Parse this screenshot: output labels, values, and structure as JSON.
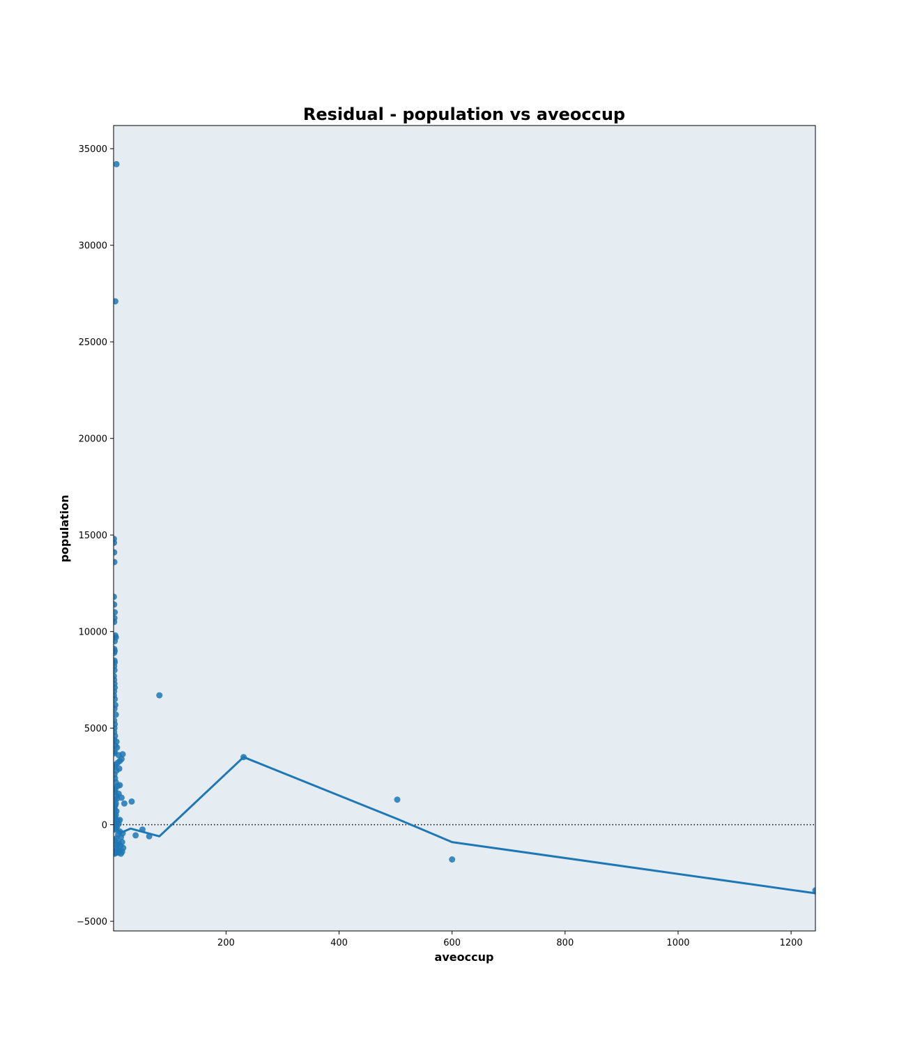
{
  "chart_data": {
    "type": "scatter",
    "title": "Residual - population vs aveoccup",
    "xlabel": "aveoccup",
    "ylabel": "population",
    "xlim": [
      1,
      1243
    ],
    "ylim": [
      -5500,
      36200
    ],
    "xticks": [
      200,
      400,
      600,
      800,
      1000,
      1200
    ],
    "yticks": [
      -5000,
      0,
      5000,
      10000,
      15000,
      20000,
      25000,
      30000,
      35000
    ],
    "grid": false,
    "legend": "none",
    "colors": {
      "point": "#1f77b4",
      "line": "#1f77b4",
      "plot_background": "#e5edf2",
      "zero_line": "#000000"
    },
    "series": [
      {
        "type": "scatter",
        "points": [
          [
            6,
            34200
          ],
          [
            4,
            27100
          ],
          [
            1.5,
            14800
          ],
          [
            1.8,
            14600
          ],
          [
            2.0,
            14100
          ],
          [
            2.3,
            13600
          ],
          [
            1.5,
            11800
          ],
          [
            2.0,
            11400
          ],
          [
            3.0,
            11000
          ],
          [
            2.5,
            10700
          ],
          [
            2.0,
            10500
          ],
          [
            4,
            9800
          ],
          [
            5,
            9700
          ],
          [
            3,
            9500
          ],
          [
            2,
            9100
          ],
          [
            3,
            9000
          ],
          [
            2,
            8900
          ],
          [
            2.5,
            8500
          ],
          [
            3,
            8400
          ],
          [
            2,
            8200
          ],
          [
            2.5,
            8000
          ],
          [
            1.5,
            7700
          ],
          [
            2,
            7500
          ],
          [
            2.5,
            7300
          ],
          [
            3,
            7100
          ],
          [
            2,
            6900
          ],
          [
            1.5,
            6700
          ],
          [
            3,
            6500
          ],
          [
            4,
            6200
          ],
          [
            2.5,
            6000
          ],
          [
            5,
            5700
          ],
          [
            2,
            5400
          ],
          [
            3,
            5200
          ],
          [
            2.5,
            5000
          ],
          [
            2,
            4800
          ],
          [
            3.5,
            4600
          ],
          [
            2,
            4400
          ],
          [
            6,
            4300
          ],
          [
            4,
            4100
          ],
          [
            7,
            4000
          ],
          [
            3,
            3800
          ],
          [
            2.5,
            3700
          ],
          [
            10,
            3600
          ],
          [
            17,
            3650
          ],
          [
            15,
            3400
          ],
          [
            12,
            3300
          ],
          [
            8,
            3200
          ],
          [
            4,
            3100
          ],
          [
            3,
            3000
          ],
          [
            11,
            2900
          ],
          [
            6,
            2800
          ],
          [
            2.5,
            2600
          ],
          [
            3.5,
            2400
          ],
          [
            5,
            2200
          ],
          [
            12,
            2050
          ],
          [
            8,
            2000
          ],
          [
            2.5,
            1900
          ],
          [
            4,
            1800
          ],
          [
            3,
            1700
          ],
          [
            10,
            1600
          ],
          [
            6,
            1500
          ],
          [
            15,
            1400
          ],
          [
            7,
            1350
          ],
          [
            3,
            1300
          ],
          [
            33,
            1200
          ],
          [
            20,
            1100
          ],
          [
            5,
            1100
          ],
          [
            4,
            1000
          ],
          [
            2.5,
            900
          ],
          [
            3,
            800
          ],
          [
            6,
            700
          ],
          [
            2.5,
            600
          ],
          [
            5,
            500
          ],
          [
            3,
            400
          ],
          [
            4,
            300
          ],
          [
            12,
            250
          ],
          [
            8,
            200
          ],
          [
            3,
            150
          ],
          [
            6,
            100
          ],
          [
            10,
            50
          ],
          [
            2.5,
            0
          ],
          [
            4,
            -50
          ],
          [
            7,
            -100
          ],
          [
            5,
            -200
          ],
          [
            3,
            -250
          ],
          [
            52,
            -250
          ],
          [
            12,
            -350
          ],
          [
            17,
            -450
          ],
          [
            9,
            -500
          ],
          [
            40,
            -550
          ],
          [
            64,
            -600
          ],
          [
            14,
            -650
          ],
          [
            6,
            -700
          ],
          [
            3,
            -800
          ],
          [
            16,
            -900
          ],
          [
            10,
            -950
          ],
          [
            5,
            -1000
          ],
          [
            8,
            -1050
          ],
          [
            13,
            -1100
          ],
          [
            18,
            -1200
          ],
          [
            4,
            -1250
          ],
          [
            7,
            -1300
          ],
          [
            11,
            -1350
          ],
          [
            16,
            -1400
          ],
          [
            2.5,
            -1400
          ],
          [
            9,
            -1450
          ],
          [
            5,
            -1450
          ],
          [
            14,
            -1500
          ],
          [
            3,
            -1500
          ],
          [
            82,
            6700
          ],
          [
            231,
            3500
          ],
          [
            503,
            1300
          ],
          [
            600,
            -1800
          ],
          [
            1243,
            -3400
          ]
        ]
      },
      {
        "type": "line",
        "points": [
          [
            5,
            -200
          ],
          [
            15,
            -400
          ],
          [
            31,
            -200
          ],
          [
            82,
            -600
          ],
          [
            231,
            3500
          ],
          [
            503,
            300
          ],
          [
            600,
            -900
          ],
          [
            1243,
            -3550
          ]
        ]
      }
    ],
    "reference_lines": [
      {
        "y": 0,
        "style": "dotted"
      }
    ]
  }
}
